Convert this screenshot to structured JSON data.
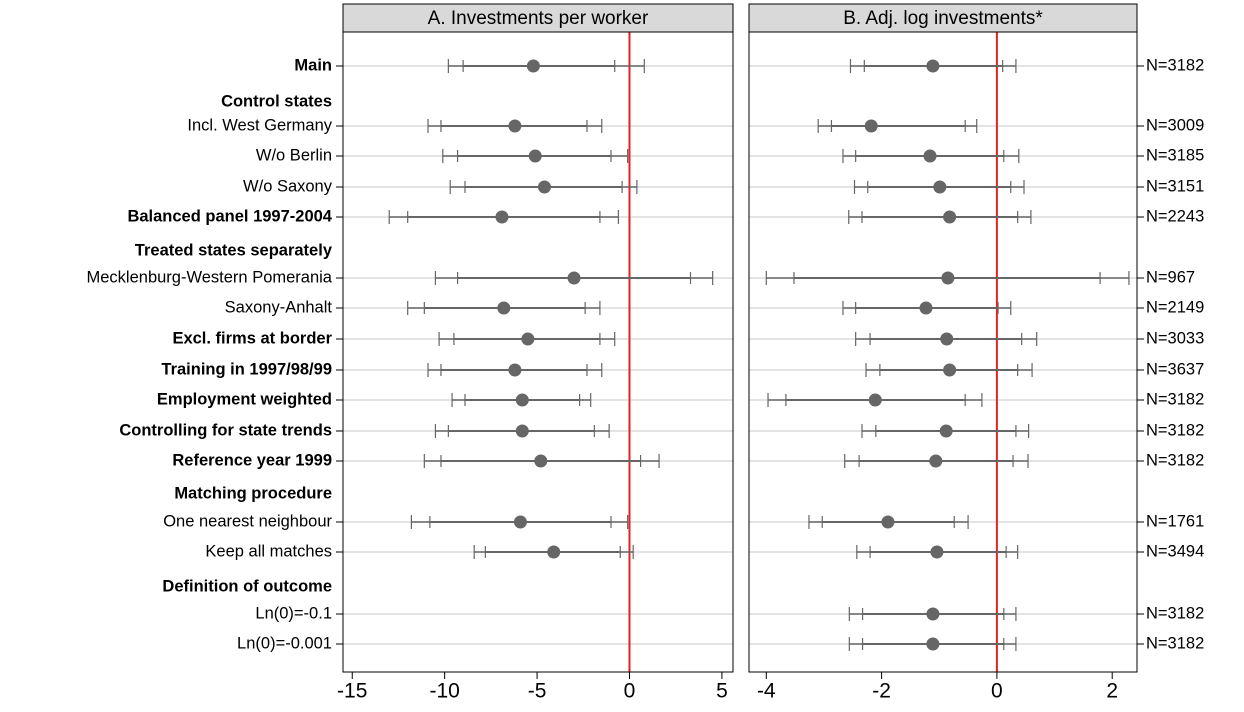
{
  "chart_data": [
    {
      "type": "errorbar",
      "title": "A. Investments per worker",
      "categories": [
        "Main",
        "Control states",
        "Incl. West Germany",
        "W/o Berlin",
        "W/o Saxony",
        "Balanced panel 1997-2004",
        "Treated states separately",
        "Mecklenburg-Western Pomerania",
        "Saxony-Anhalt",
        "Excl. firms at border",
        "Training in 1997/98/99",
        "Employment weighted",
        "Controlling for state trends",
        "Reference year 1999",
        "Matching procedure",
        "One nearest neighbour",
        "Keep all matches",
        "Definition of outcome",
        "Ln(0)=-0.1",
        "Ln(0)=-0.001"
      ],
      "category_styles": [
        "bold",
        "header",
        "plain",
        "plain",
        "plain",
        "bold",
        "header",
        "plain",
        "plain",
        "bold",
        "bold",
        "bold",
        "bold",
        "bold",
        "header",
        "plain",
        "plain",
        "header",
        "plain",
        "plain"
      ],
      "values": [
        -5.2,
        null,
        -6.2,
        -5.1,
        -4.6,
        -6.9,
        null,
        -3.0,
        -6.8,
        -5.5,
        -6.2,
        -5.8,
        -5.8,
        -4.8,
        null,
        -5.9,
        -4.1,
        null,
        null,
        null
      ],
      "ci90_low": [
        -9.0,
        null,
        -10.2,
        -9.3,
        -8.9,
        -12.0,
        null,
        -9.3,
        -11.1,
        -9.5,
        -10.2,
        -8.9,
        -9.8,
        -10.2,
        null,
        -10.8,
        -7.8,
        null,
        null,
        null
      ],
      "ci90_high": [
        -0.8,
        null,
        -2.3,
        -1.0,
        -0.4,
        -1.6,
        null,
        3.3,
        -2.4,
        -1.6,
        -2.3,
        -2.7,
        -1.9,
        0.6,
        null,
        -1.0,
        -0.5,
        null,
        null,
        null
      ],
      "ci95_low": [
        -9.8,
        null,
        -10.9,
        -10.1,
        -9.7,
        -13.0,
        null,
        -10.5,
        -12.0,
        -10.3,
        -10.9,
        -9.6,
        -10.5,
        -11.1,
        null,
        -11.8,
        -8.4,
        null,
        null,
        null
      ],
      "ci95_high": [
        0.8,
        null,
        -1.5,
        -0.1,
        0.4,
        -0.6,
        null,
        4.5,
        -1.6,
        -0.8,
        -1.5,
        -2.1,
        -1.1,
        1.6,
        null,
        -0.1,
        0.2,
        null,
        null,
        null
      ],
      "color": "#666666",
      "reference_line": 0,
      "reference_color": "#e8221b",
      "xlim": [
        -15.5,
        5.6
      ],
      "xticks": [
        -15,
        -10,
        -5,
        0,
        5
      ],
      "grid": true
    },
    {
      "type": "errorbar",
      "title": "B. Adj. log investments*",
      "values": [
        -1.11,
        null,
        -2.18,
        -1.16,
        -0.99,
        -0.82,
        null,
        -0.85,
        -1.23,
        -0.87,
        -0.82,
        -2.11,
        -0.88,
        -1.06,
        null,
        -1.89,
        -1.04,
        null,
        -1.11,
        -1.11
      ],
      "ci90_low": [
        -2.3,
        null,
        -2.87,
        -2.45,
        -2.24,
        -2.34,
        null,
        -3.52,
        -2.45,
        -2.2,
        -2.03,
        -3.66,
        -2.1,
        -2.39,
        null,
        -3.03,
        -2.2,
        null,
        -2.33,
        -2.33
      ],
      "ci90_high": [
        0.1,
        null,
        -0.55,
        0.12,
        0.24,
        0.36,
        null,
        1.79,
        0.02,
        0.43,
        0.36,
        -0.55,
        0.33,
        0.28,
        null,
        -0.74,
        0.16,
        null,
        0.12,
        0.12
      ],
      "ci95_low": [
        -2.54,
        null,
        -3.1,
        -2.67,
        -2.47,
        -2.57,
        null,
        -4.0,
        -2.67,
        -2.45,
        -2.27,
        -3.97,
        -2.34,
        -2.64,
        null,
        -3.26,
        -2.43,
        null,
        -2.56,
        -2.56
      ],
      "ci95_high": [
        0.33,
        null,
        -0.35,
        0.38,
        0.47,
        0.59,
        null,
        2.29,
        0.24,
        0.69,
        0.61,
        -0.26,
        0.55,
        0.54,
        null,
        -0.5,
        0.36,
        null,
        0.33,
        0.33
      ],
      "n_labels": [
        "N=3182",
        null,
        "N=3009",
        "N=3185",
        "N=3151",
        "N=2243",
        null,
        "N=967",
        "N=2149",
        "N=3033",
        "N=3637",
        "N=3182",
        "N=3182",
        "N=3182",
        null,
        "N=1761",
        "N=3494",
        null,
        "N=3182",
        "N=3182"
      ],
      "color": "#666666",
      "reference_line": 0,
      "reference_color": "#e8221b",
      "xlim": [
        -4.3,
        2.43
      ],
      "xticks": [
        -4,
        -2,
        0,
        2
      ],
      "grid": true
    }
  ]
}
